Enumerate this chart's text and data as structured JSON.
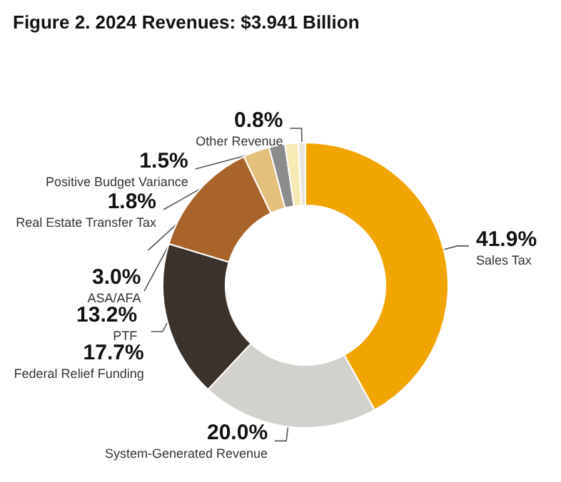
{
  "chart_data": {
    "type": "donut",
    "title": "Figure 2. 2024 Revenues: $3.941 Billion",
    "categories": [
      "Sales Tax",
      "System-Generated Revenue",
      "Federal Relief Funding",
      "PTF",
      "ASA/AFA",
      "Real Estate Transfer Tax",
      "Positive Budget Variance",
      "Other Revenue"
    ],
    "values": [
      41.9,
      20.0,
      17.7,
      13.2,
      3.0,
      1.8,
      1.5,
      0.8
    ],
    "colors": [
      "#f0a500",
      "#d3d1cc",
      "#3b322c",
      "#a8642a",
      "#e3c07c",
      "#8c8c8c",
      "#f8eab4",
      "#e9e5da"
    ],
    "value_labels": [
      "41.9%",
      "20.0%",
      "17.7%",
      "13.2%",
      "3.0%",
      "1.8%",
      "1.5%",
      "0.8%"
    ],
    "legend": false
  }
}
